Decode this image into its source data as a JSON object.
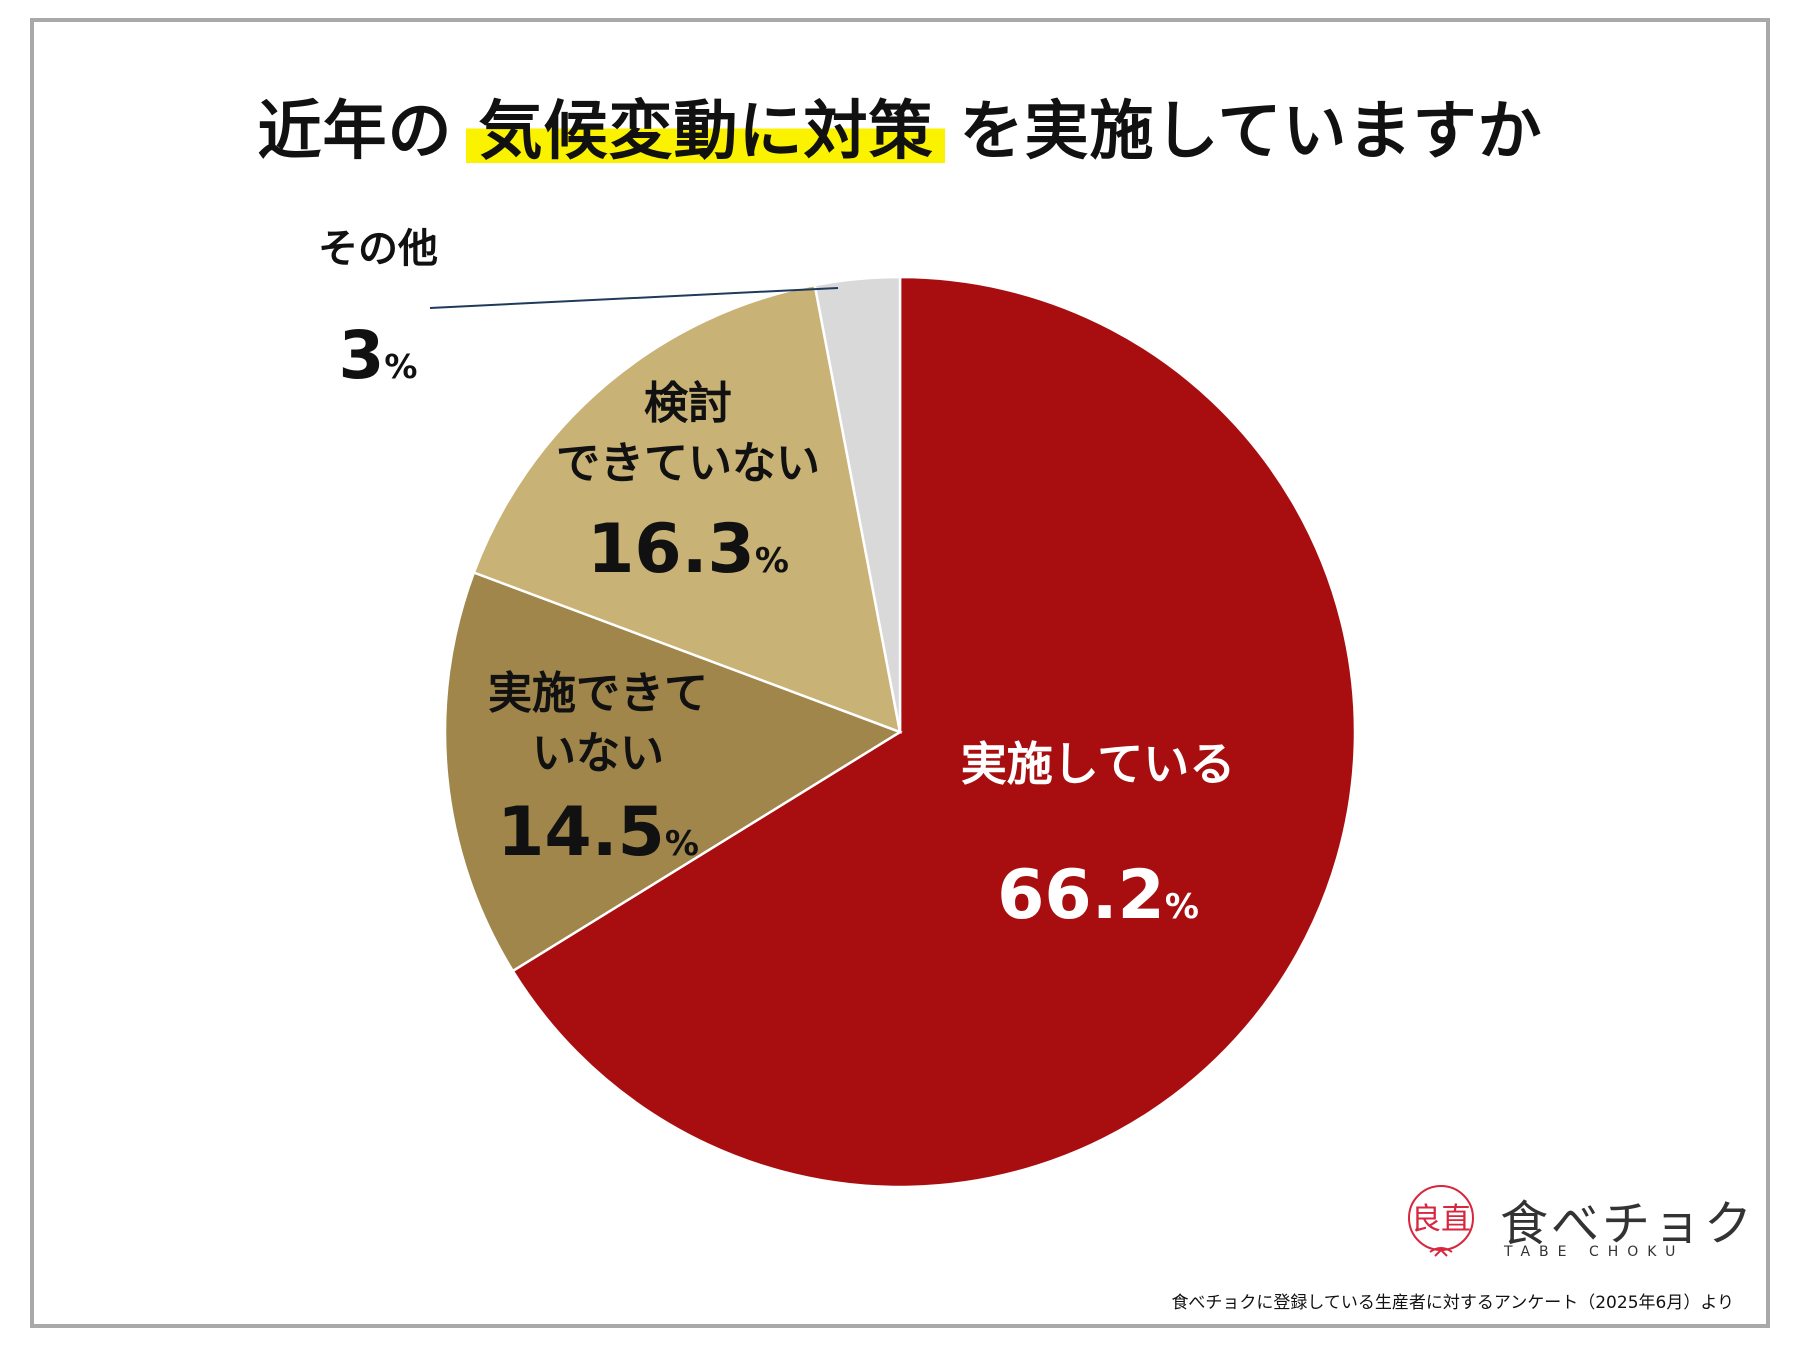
{
  "title": {
    "prefix": "近年の",
    "highlight": "気候変動に対策",
    "suffix": "を実施していますか"
  },
  "chart_data": {
    "type": "pie",
    "categories": [
      "実施している",
      "実施できていない",
      "検討できていない",
      "その他"
    ],
    "values": [
      66.2,
      14.5,
      16.3,
      3
    ],
    "unit": "%",
    "colors": [
      "#a80e10",
      "#a0864a",
      "#c9b275",
      "#d9d9d9"
    ],
    "start": "12 o'clock",
    "direction": "clockwise",
    "labels": [
      {
        "lines": [
          "実施している"
        ],
        "value": "66.2",
        "unit": "%",
        "color": "#ffffff"
      },
      {
        "lines": [
          "実施できて",
          "いない"
        ],
        "value": "14.5",
        "unit": "%",
        "color": "#111111"
      },
      {
        "lines": [
          "検討",
          "できていない"
        ],
        "value": "16.3",
        "unit": "%",
        "color": "#111111"
      },
      {
        "lines": [
          "その他"
        ],
        "value": "3",
        "unit": "%",
        "color": "#111111"
      }
    ]
  },
  "logo": {
    "mark": "良直",
    "name": "食べチョク",
    "sub": "TABE CHOKU"
  },
  "source": "食べチョクに登録している生産者に対するアンケート（2025年6月）より"
}
